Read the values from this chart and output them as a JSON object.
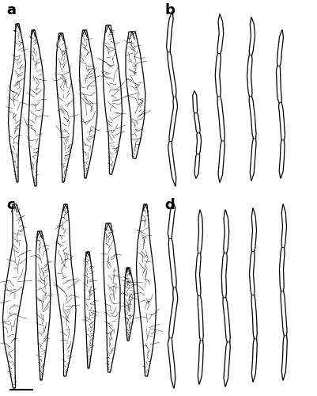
{
  "background_color": "#ffffff",
  "line_color": "#000000",
  "line_width": 0.9,
  "panel_label_fontsize": 13,
  "panel_labels": [
    "a",
    "b",
    "c",
    "d"
  ],
  "figsize": [
    4.01,
    5.0
  ],
  "dpi": 100
}
